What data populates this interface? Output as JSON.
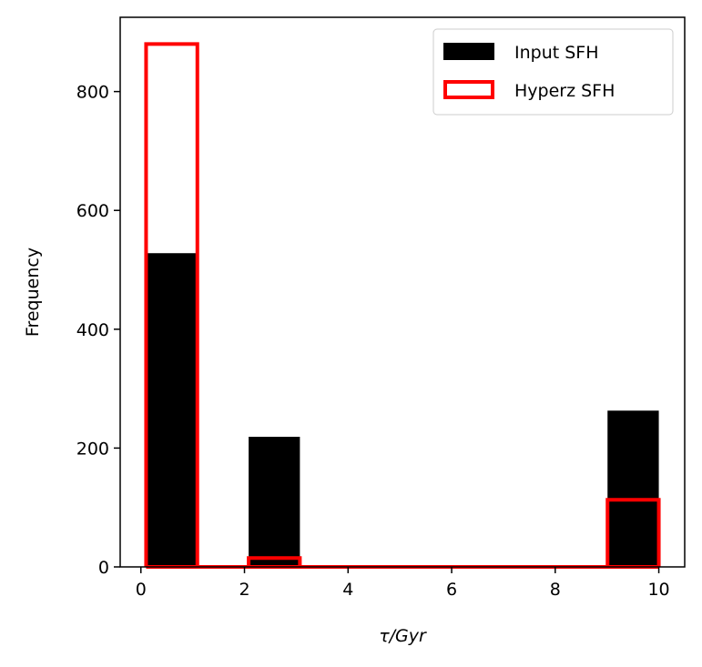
{
  "chart_data": {
    "type": "bar",
    "title": "",
    "xlabel": "τ/Gyr",
    "ylabel": "Frequency",
    "xlim": [
      -0.4,
      10.5
    ],
    "ylim": [
      0,
      925
    ],
    "xticks": [
      0,
      2,
      4,
      6,
      8,
      10
    ],
    "yticks": [
      0,
      200,
      400,
      600,
      800
    ],
    "grid": false,
    "legend_position": "top-right",
    "series": [
      {
        "name": "Input SFH",
        "style": "filled",
        "color": "#000000",
        "bins": [
          {
            "x0": 0.1,
            "x1": 1.09,
            "value": 528
          },
          {
            "x0": 1.09,
            "x1": 2.08,
            "value": 0
          },
          {
            "x0": 2.08,
            "x1": 3.07,
            "value": 219
          },
          {
            "x0": 3.07,
            "x1": 4.06,
            "value": 0
          },
          {
            "x0": 4.06,
            "x1": 5.05,
            "value": 0
          },
          {
            "x0": 5.05,
            "x1": 6.04,
            "value": 0
          },
          {
            "x0": 6.04,
            "x1": 7.03,
            "value": 0
          },
          {
            "x0": 7.03,
            "x1": 8.02,
            "value": 0
          },
          {
            "x0": 8.02,
            "x1": 9.01,
            "value": 0
          },
          {
            "x0": 9.01,
            "x1": 10.0,
            "value": 263
          }
        ]
      },
      {
        "name": "Hyperz SFH",
        "style": "step-outline",
        "color": "#ff0000",
        "bins": [
          {
            "x0": 0.1,
            "x1": 1.09,
            "value": 880
          },
          {
            "x0": 1.09,
            "x1": 2.08,
            "value": 0
          },
          {
            "x0": 2.08,
            "x1": 3.07,
            "value": 15
          },
          {
            "x0": 3.07,
            "x1": 4.06,
            "value": 0
          },
          {
            "x0": 4.06,
            "x1": 5.05,
            "value": 0
          },
          {
            "x0": 5.05,
            "x1": 6.04,
            "value": 0
          },
          {
            "x0": 6.04,
            "x1": 7.03,
            "value": 0
          },
          {
            "x0": 7.03,
            "x1": 8.02,
            "value": 0
          },
          {
            "x0": 8.02,
            "x1": 9.01,
            "value": 0
          },
          {
            "x0": 9.01,
            "x1": 10.0,
            "value": 113
          }
        ]
      }
    ]
  }
}
